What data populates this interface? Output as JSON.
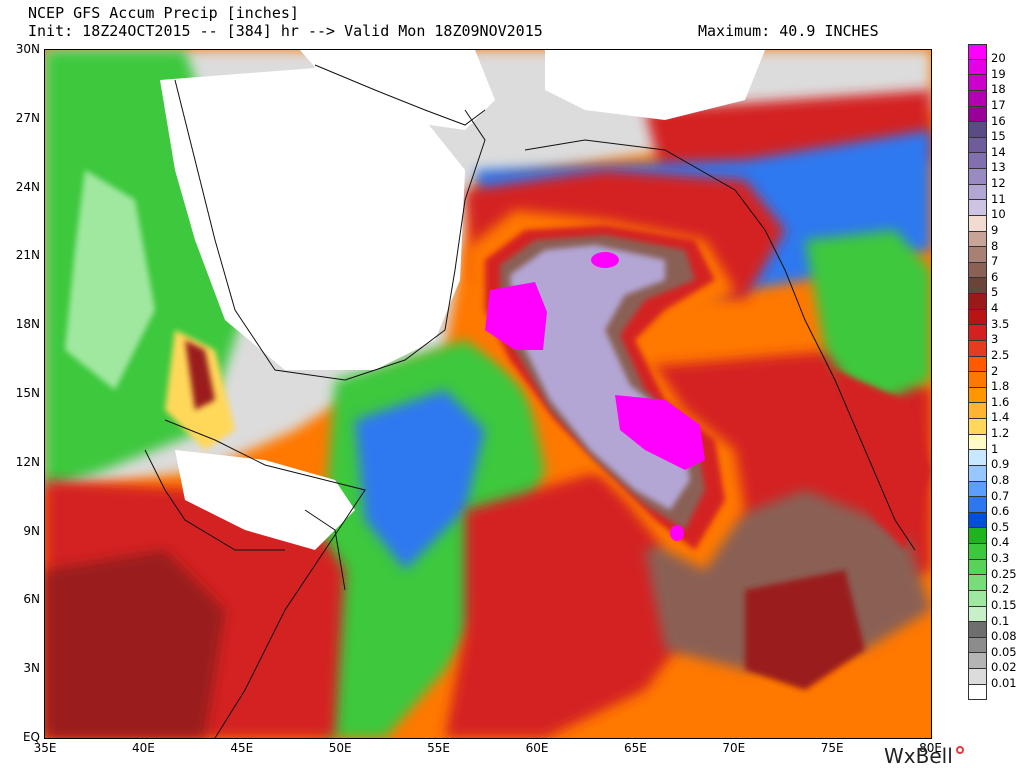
{
  "header": {
    "title": "NCEP GFS Accum Precip [inches]",
    "init": "Init: 18Z24OCT2015 -- [384] hr --> Valid Mon 18Z09NOV2015",
    "maximum": "Maximum: 40.9 INCHES"
  },
  "axes": {
    "lat_labels": [
      "30N",
      "27N",
      "24N",
      "21N",
      "18N",
      "15N",
      "12N",
      "9N",
      "6N",
      "3N",
      "EQ"
    ],
    "lon_labels": [
      "35E",
      "40E",
      "45E",
      "50E",
      "55E",
      "60E",
      "65E",
      "70E",
      "75E",
      "80E"
    ]
  },
  "legend": {
    "labels": [
      "20",
      "19",
      "18",
      "17",
      "16",
      "15",
      "14",
      "13",
      "12",
      "11",
      "10",
      "9",
      "8",
      "7",
      "6",
      "5",
      "4",
      "3.5",
      "3",
      "2.5",
      "2",
      "1.8",
      "1.6",
      "1.4",
      "1.2",
      "1",
      "0.9",
      "0.8",
      "0.7",
      "0.6",
      "0.5",
      "0.4",
      "0.3",
      "0.25",
      "0.2",
      "0.15",
      "0.1",
      "0.08",
      "0.05",
      "0.02",
      "0.01"
    ],
    "colors": [
      "#ff00ff",
      "#e600e6",
      "#cc00cc",
      "#b300b3",
      "#990099",
      "#5a4a86",
      "#6e5d9a",
      "#8270ae",
      "#9a8ac2",
      "#b3a6d4",
      "#cdc4e3",
      "#f2dcd2",
      "#c8a398",
      "#a98074",
      "#8a6154",
      "#6b4338",
      "#9a1a1a",
      "#b81414",
      "#d42020",
      "#e63c1e",
      "#ff5a00",
      "#ff7800",
      "#ff9600",
      "#ffb432",
      "#ffd85a",
      "#fffac8",
      "#c8e8ff",
      "#96c8ff",
      "#5a9eff",
      "#2d78f0",
      "#0050dc",
      "#1eb41e",
      "#3cc83c",
      "#5ad25a",
      "#78dc78",
      "#a0e8a0",
      "#c8f0c8",
      "#6e6e6e",
      "#8c8c8c",
      "#b4b4b4",
      "#dcdcdc"
    ],
    "last_label": "0.01"
  },
  "logo": "WxBell",
  "colors": {
    "magenta": "#ff00ff",
    "lavender": "#b3a6d4",
    "brown": "#8a6154",
    "darkred": "#9a1a1a",
    "red": "#d42020",
    "orange": "#ff7800",
    "yellow": "#ffd85a",
    "blue": "#2d78f0",
    "green": "#3cc83c",
    "lightgreen": "#a0e8a0",
    "gray": "#8c8c8c",
    "lightgray": "#dcdcdc",
    "land_white": "#ffffff"
  }
}
